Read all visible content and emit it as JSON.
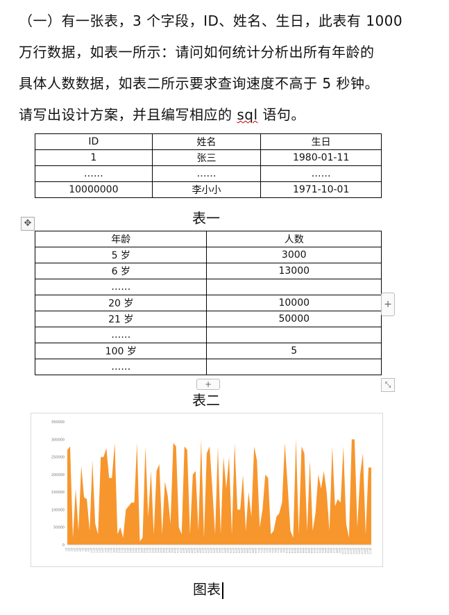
{
  "question": {
    "line1": "（一）有一张表，3 个字段，ID、姓名、生日，此表有 1000",
    "line2": "万行数据，如表一所示：请问如何统计分析出所有年龄的",
    "line3": "具体人数数据，如表二所示要求查询速度不高于 5 秒钟。",
    "line4_prefix": "请写出设计方案，并且编写相应的 ",
    "line4_sql": "sql",
    "line4_suffix": " 语句。"
  },
  "table1": {
    "headers": [
      "ID",
      "姓名",
      "生日"
    ],
    "rows": [
      [
        "1",
        "张三",
        "1980-01-11"
      ],
      [
        "……",
        "……",
        "……"
      ],
      [
        "10000000",
        "李小小",
        "1971-10-01"
      ]
    ]
  },
  "caption1": "表一",
  "table2": {
    "headers": [
      "年龄",
      "人数"
    ],
    "rows": [
      [
        "5 岁",
        "3000"
      ],
      [
        "6 岁",
        "13000"
      ],
      [
        "……",
        ""
      ],
      [
        "20 岁",
        "10000"
      ],
      [
        "21 岁",
        "50000"
      ],
      [
        "……",
        ""
      ],
      [
        "100 岁",
        "5"
      ],
      [
        "……",
        ""
      ]
    ]
  },
  "caption2": "表二",
  "icons": {
    "move": "✥",
    "add_column": "+",
    "add_row": "+",
    "resize": "⤡"
  },
  "chart_data": {
    "type": "area",
    "color": "#f7962d",
    "ylim": [
      0,
      350000
    ],
    "yticks": [
      0,
      50000,
      100000,
      150000,
      200000,
      250000,
      300000,
      350000
    ],
    "x": [
      "1岁",
      "2岁",
      "3岁",
      "4岁",
      "5岁",
      "6岁",
      "7岁",
      "8岁",
      "9岁",
      "10岁",
      "11岁",
      "12岁",
      "13岁",
      "14岁",
      "15岁",
      "16岁",
      "17岁",
      "18岁",
      "19岁",
      "20岁",
      "21岁",
      "22岁",
      "23岁",
      "24岁",
      "25岁",
      "26岁",
      "27岁",
      "28岁",
      "29岁",
      "30岁",
      "31岁",
      "32岁",
      "33岁",
      "34岁",
      "35岁",
      "36岁",
      "37岁",
      "38岁",
      "39岁",
      "40岁",
      "41岁",
      "42岁",
      "43岁",
      "44岁",
      "45岁",
      "46岁",
      "47岁",
      "48岁",
      "49岁",
      "50岁",
      "51岁",
      "52岁",
      "53岁",
      "54岁",
      "55岁",
      "56岁",
      "57岁",
      "58岁",
      "59岁",
      "60岁",
      "61岁",
      "62岁",
      "63岁",
      "64岁",
      "65岁",
      "66岁",
      "67岁",
      "68岁",
      "69岁",
      "70岁",
      "71岁",
      "72岁",
      "73岁",
      "74岁",
      "75岁",
      "76岁",
      "77岁",
      "78岁",
      "79岁",
      "80岁",
      "81岁",
      "82岁",
      "83岁",
      "84岁",
      "85岁",
      "86岁",
      "87岁",
      "88岁",
      "89岁",
      "90岁",
      "91岁",
      "92岁",
      "93岁",
      "94岁",
      "95岁",
      "96岁",
      "97岁",
      "98岁",
      "99岁",
      "100岁",
      "101岁",
      "102岁",
      "103岁",
      "104岁",
      "105岁",
      "106岁",
      "107岁",
      "108岁",
      "109岁",
      "110岁"
    ],
    "values": [
      270000,
      280000,
      20000,
      160000,
      40000,
      225000,
      135000,
      130000,
      40000,
      240000,
      60000,
      30000,
      250000,
      250000,
      275000,
      190000,
      190000,
      290000,
      30000,
      50000,
      20000,
      100000,
      110000,
      120000,
      120000,
      290000,
      10000,
      20000,
      280000,
      80000,
      210000,
      30000,
      210000,
      230000,
      30000,
      180000,
      140000,
      60000,
      290000,
      280000,
      50000,
      30000,
      280000,
      270000,
      30000,
      200000,
      210000,
      40000,
      300000,
      20000,
      260000,
      280000,
      160000,
      30000,
      280000,
      30000,
      250000,
      160000,
      250000,
      30000,
      290000,
      100000,
      100000,
      200000,
      40000,
      150000,
      80000,
      280000,
      240000,
      50000,
      100000,
      200000,
      190000,
      30000,
      40000,
      80000,
      90000,
      120000,
      290000,
      170000,
      40000,
      20000,
      300000,
      30000,
      280000,
      260000,
      40000,
      240000,
      40000,
      90000,
      200000,
      160000,
      210000,
      150000,
      40000,
      280000,
      110000,
      130000,
      120000,
      280000,
      60000,
      20000,
      300000,
      300000,
      50000,
      200000,
      260000,
      30000,
      220000,
      220000
    ]
  },
  "caption3": "图表"
}
